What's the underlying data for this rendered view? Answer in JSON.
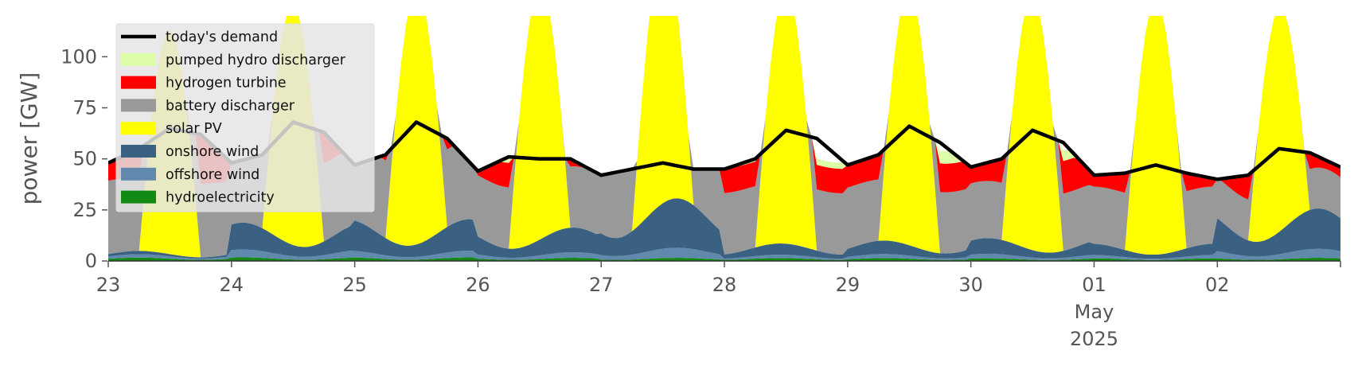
{
  "chart_data": {
    "type": "area",
    "stacked": true,
    "title": "",
    "xlabel": "",
    "ylabel": "power [GW]",
    "ylim": [
      0,
      120
    ],
    "xlim": [
      "2025-04-23 00:00",
      "2025-05-02 23:59"
    ],
    "y_ticks": [
      0,
      25,
      50,
      75,
      100
    ],
    "x_ticks": [
      {
        "at": "2025-04-23",
        "label": "23"
      },
      {
        "at": "2025-04-24",
        "label": "24"
      },
      {
        "at": "2025-04-25",
        "label": "25"
      },
      {
        "at": "2025-04-26",
        "label": "26"
      },
      {
        "at": "2025-04-27",
        "label": "27"
      },
      {
        "at": "2025-04-28",
        "label": "28"
      },
      {
        "at": "2025-04-29",
        "label": "29"
      },
      {
        "at": "2025-04-30",
        "label": "30"
      },
      {
        "at": "2025-05-01",
        "label": "01",
        "sublabel_1": "May",
        "sublabel_2": "2025"
      },
      {
        "at": "2025-05-02",
        "label": "02"
      }
    ],
    "grid": false,
    "legend_position": "upper-left",
    "series": [
      {
        "name": "hydroelectricity",
        "color": "#138a13",
        "daily_mean": [
          1.5,
          1.6,
          1.6,
          1.4,
          1.4,
          1.3,
          1.3,
          1.2,
          1.2,
          1.4
        ]
      },
      {
        "name": "offshore wind",
        "color": "#6089ad",
        "daily_mean": [
          1.5,
          3.5,
          3.0,
          2.5,
          4.5,
          1.5,
          1.8,
          2.0,
          1.5,
          4.0
        ]
      },
      {
        "name": "onshore wind",
        "color": "#3b6182",
        "daily_mean": [
          1.5,
          12.0,
          14.0,
          11.0,
          22.0,
          5.0,
          6.0,
          7.0,
          5.0,
          18.0
        ]
      },
      {
        "name": "solar PV",
        "color": "#ffff00",
        "daily_peak": [
          110,
          118,
          125,
          125,
          125,
          125,
          125,
          125,
          125,
          110
        ]
      },
      {
        "name": "battery discharger",
        "color": "#999999",
        "daily_evening_peak": [
          36,
          38,
          38,
          30,
          62,
          30,
          30,
          28,
          28,
          20
        ]
      },
      {
        "name": "hydrogen turbine",
        "color": "#ff0000",
        "daily_evening_peak": [
          28,
          18,
          14,
          12,
          0,
          12,
          14,
          16,
          14,
          30
        ]
      },
      {
        "name": "pumped hydro discharger",
        "color": "#dcfca7",
        "daily_evening_peak": [
          0,
          0,
          0,
          6,
          12,
          3,
          6,
          5,
          4,
          0
        ]
      }
    ],
    "demand": {
      "name": "today's demand",
      "color": "#000000",
      "x": [
        "2025-04-23 00:00",
        "2025-04-23 06:00",
        "2025-04-23 12:00",
        "2025-04-23 18:00",
        "2025-04-24 00:00",
        "2025-04-24 06:00",
        "2025-04-24 12:00",
        "2025-04-24 18:00",
        "2025-04-25 00:00",
        "2025-04-25 06:00",
        "2025-04-25 12:00",
        "2025-04-25 18:00",
        "2025-04-26 00:00",
        "2025-04-26 06:00",
        "2025-04-26 12:00",
        "2025-04-26 18:00",
        "2025-04-27 00:00",
        "2025-04-27 06:00",
        "2025-04-27 12:00",
        "2025-04-27 18:00",
        "2025-04-28 00:00",
        "2025-04-28 06:00",
        "2025-04-28 12:00",
        "2025-04-28 18:00",
        "2025-04-29 00:00",
        "2025-04-29 06:00",
        "2025-04-29 12:00",
        "2025-04-29 18:00",
        "2025-04-30 00:00",
        "2025-04-30 06:00",
        "2025-04-30 12:00",
        "2025-04-30 18:00",
        "2025-05-01 00:00",
        "2025-05-01 06:00",
        "2025-05-01 12:00",
        "2025-05-01 18:00",
        "2025-05-02 00:00",
        "2025-05-02 06:00",
        "2025-05-02 12:00",
        "2025-05-02 18:00",
        "2025-05-02 23:59"
      ],
      "y": [
        48,
        55,
        65,
        62,
        48,
        52,
        68,
        63,
        47,
        52,
        68,
        60,
        44,
        51,
        50,
        50,
        42,
        45,
        48,
        45,
        45,
        50,
        64,
        60,
        47,
        52,
        66,
        58,
        46,
        50,
        64,
        58,
        42,
        43,
        47,
        43,
        40,
        42,
        55,
        53,
        46
      ]
    },
    "legend_entries": [
      "today's demand",
      "pumped hydro discharger",
      "hydrogen turbine",
      "battery discharger",
      "solar PV",
      "onshore wind",
      "offshore wind",
      "hydroelectricity"
    ]
  }
}
